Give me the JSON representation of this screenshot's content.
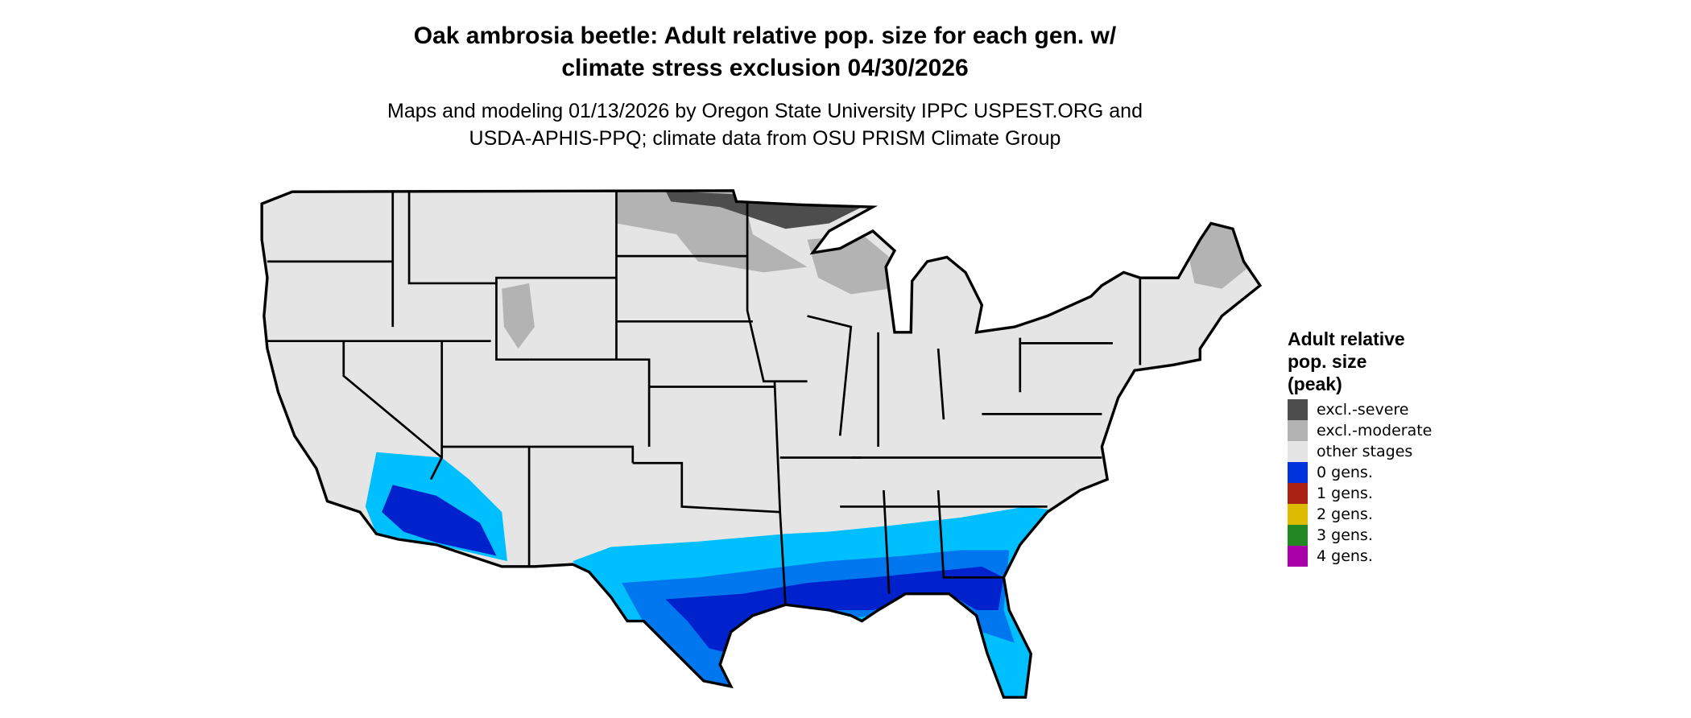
{
  "title": {
    "line1": "Oak ambrosia beetle: Adult relative pop. size for each gen. w/",
    "line2": "climate stress exclusion 04/30/2026"
  },
  "subtitle": {
    "line1": "Maps and modeling 01/13/2026 by Oregon State University IPPC USPEST.ORG and",
    "line2": "USDA-APHIS-PPQ; climate data from OSU PRISM Climate Group"
  },
  "legend": {
    "title_lines": [
      "Adult relative",
      "pop. size",
      "(peak)"
    ],
    "items": [
      {
        "label": "excl.-severe",
        "color": "#4d4d4d"
      },
      {
        "label": "excl.-moderate",
        "color": "#b3b3b3"
      },
      {
        "label": "other stages",
        "color": "#e5e5e5"
      },
      {
        "label": "0 gens.",
        "color": "#0033dd"
      },
      {
        "label": "1 gens.",
        "color": "#aa2211"
      },
      {
        "label": "2 gens.",
        "color": "#ddbb00"
      },
      {
        "label": "3 gens.",
        "color": "#228822"
      },
      {
        "label": "4 gens.",
        "color": "#aa00aa"
      }
    ]
  },
  "map": {
    "region": "Contiguous United States",
    "colors": {
      "base": "#e5e5e5",
      "excl_moderate": "#b3b3b3",
      "excl_severe": "#4d4d4d",
      "light_blue": "#00bfff",
      "mid_blue": "#0077ee",
      "dark_blue": "#0022cc",
      "border": "#000000"
    }
  }
}
